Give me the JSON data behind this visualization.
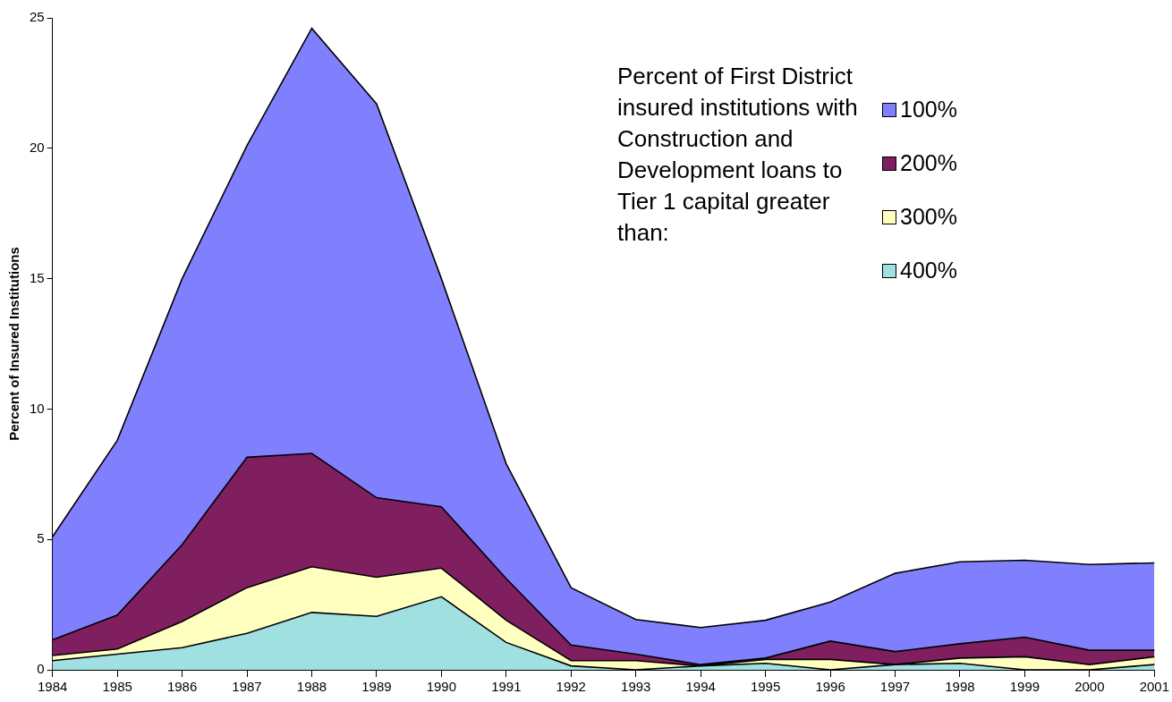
{
  "chart_data": {
    "type": "area",
    "ylabel": "Percent of Insured Institutions",
    "legend_title": "Percent of First District insured institutions with Construction and Development loans to Tier 1 capital greater than:",
    "categories": [
      "1984",
      "1985",
      "1986",
      "1987",
      "1988",
      "1989",
      "1990",
      "1991",
      "1992",
      "1993",
      "1994",
      "1995",
      "1996",
      "1997",
      "1998",
      "1999",
      "2000",
      "2001"
    ],
    "ylim": [
      0,
      25
    ],
    "yticks": [
      0,
      5,
      10,
      15,
      20,
      25
    ],
    "grid": false,
    "legend": "top right",
    "series": [
      {
        "name": "100%",
        "color": "#8080ff",
        "values": [
          5.1,
          8.8,
          15.0,
          20.1,
          24.6,
          21.7,
          15.0,
          7.9,
          3.15,
          1.93,
          1.62,
          1.9,
          2.6,
          3.7,
          4.14,
          4.2,
          4.04,
          4.1
        ]
      },
      {
        "name": "200%",
        "color": "#7f1f5f",
        "values": [
          1.15,
          2.1,
          4.8,
          8.15,
          8.3,
          6.6,
          6.25,
          3.5,
          0.95,
          0.6,
          0.2,
          0.45,
          1.1,
          0.7,
          1.0,
          1.25,
          0.75,
          0.75
        ]
      },
      {
        "name": "300%",
        "color": "#ffffc0",
        "values": [
          0.55,
          0.8,
          1.85,
          3.15,
          3.95,
          3.55,
          3.9,
          1.9,
          0.35,
          0.35,
          0.15,
          0.4,
          0.4,
          0.2,
          0.45,
          0.5,
          0.2,
          0.5
        ]
      },
      {
        "name": "400%",
        "color": "#a0e0e0",
        "values": [
          0.35,
          0.6,
          0.85,
          1.4,
          2.2,
          2.05,
          2.8,
          1.05,
          0.15,
          0,
          0.15,
          0.25,
          0,
          0.2,
          0.25,
          0,
          0,
          0.2
        ]
      }
    ]
  }
}
